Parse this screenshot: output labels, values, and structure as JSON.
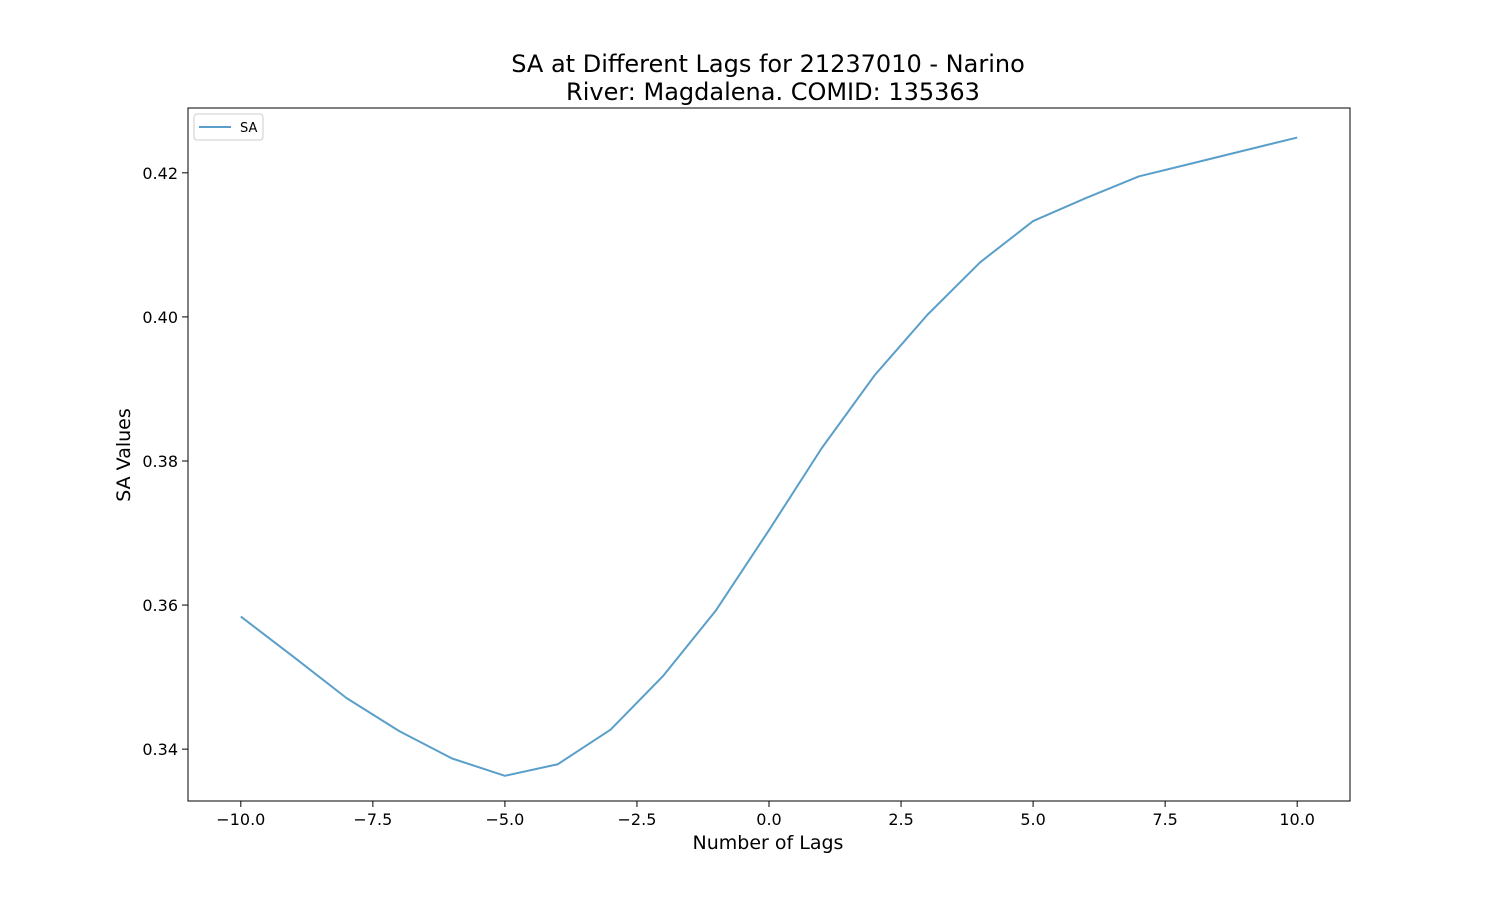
{
  "chart_data": {
    "type": "line",
    "title_line1": "SA at Different Lags for 21237010 - Narino",
    "title_line2": "River: Magdalena. COMID: 135363",
    "xlabel": "Number of Lags",
    "ylabel": "SA Values",
    "xlim": [
      -11,
      11
    ],
    "ylim": [
      0.3328,
      0.429
    ],
    "xticks": [
      -10.0,
      -7.5,
      -5.0,
      -2.5,
      0.0,
      2.5,
      5.0,
      7.5,
      10.0
    ],
    "xtick_labels": [
      "−10.0",
      "−7.5",
      "−5.0",
      "−2.5",
      "0.0",
      "2.5",
      "5.0",
      "7.5",
      "10.0"
    ],
    "yticks": [
      0.34,
      0.36,
      0.38,
      0.4,
      0.42
    ],
    "ytick_labels": [
      "0.34",
      "0.36",
      "0.38",
      "0.40",
      "0.42"
    ],
    "grid": false,
    "legend_position": "upper-left",
    "series": [
      {
        "name": "SA",
        "color": "#5a9fc9",
        "x": [
          -10,
          -9,
          -8,
          -7,
          -6,
          -5,
          -4,
          -3,
          -2,
          -1,
          0,
          1,
          2,
          3,
          4,
          5,
          6,
          7,
          8,
          9,
          10
        ],
        "y": [
          0.3584,
          0.3528,
          0.3471,
          0.3425,
          0.3387,
          0.3363,
          0.3379,
          0.3427,
          0.3502,
          0.3593,
          0.3704,
          0.3818,
          0.3919,
          0.4003,
          0.4076,
          0.4133,
          0.4165,
          0.4195,
          0.4213,
          0.4231,
          0.4249
        ]
      }
    ]
  }
}
